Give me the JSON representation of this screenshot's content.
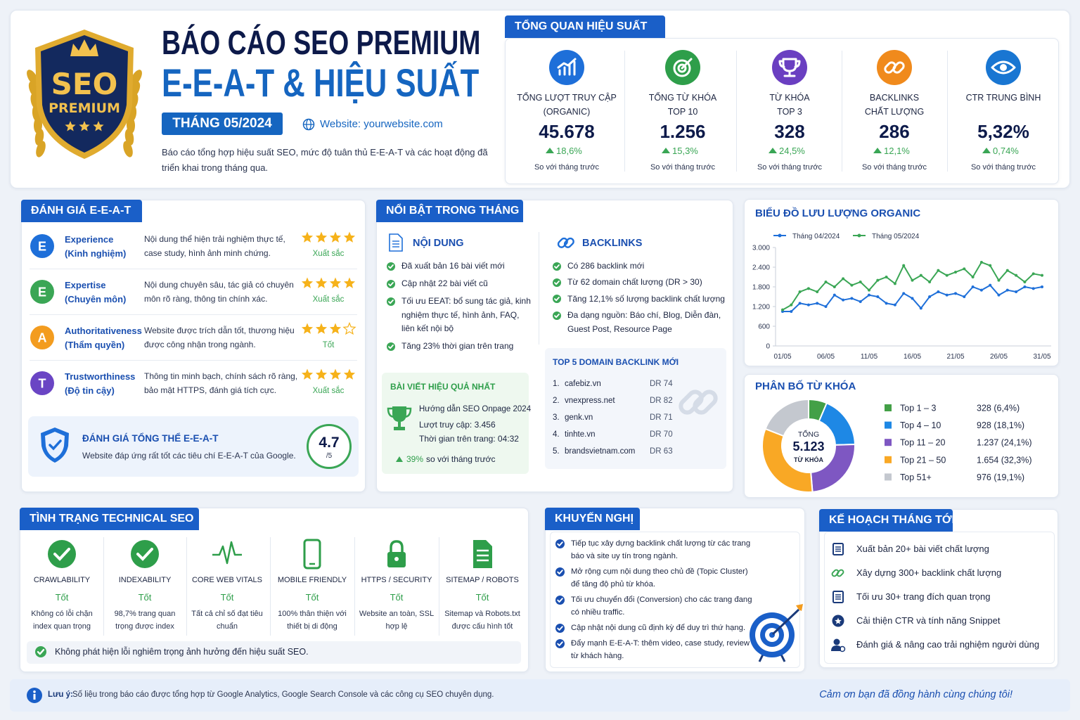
{
  "header": {
    "badge": {
      "line1": "SEO",
      "line2": "PREMIUM"
    },
    "title": "BÁO CÁO SEO PREMIUM",
    "subtitle": "E-E-A-T & HIỆU SUẤT",
    "month": "THÁNG 05/2024",
    "website": "Website: yourwebsite.com",
    "description": "Báo cáo tổng hợp hiệu suất SEO, mức độ tuân thủ E-E-A-T và các hoạt động đã triển khai trong tháng qua."
  },
  "overview": {
    "title": "TỔNG QUAN HIỆU SUẤT",
    "kpis": [
      {
        "label": [
          "TỔNG LƯỢT TRUY CẬP",
          "(ORGANIC)"
        ],
        "value": "45.678",
        "change": "18,6%",
        "note": "So với tháng trước",
        "color": "#1e6fd9"
      },
      {
        "label": [
          "TỔNG TỪ KHÓA",
          "TOP 10"
        ],
        "value": "1.256",
        "change": "15,3%",
        "note": "So với tháng trước",
        "color": "#2e9e4a"
      },
      {
        "label": [
          "TỪ KHÓA",
          "TOP 3"
        ],
        "value": "328",
        "change": "24,5%",
        "note": "So với tháng trước",
        "color": "#6a3fc1"
      },
      {
        "label": [
          "BACKLINKS",
          "CHẤT LƯỢNG"
        ],
        "value": "286",
        "change": "12,1%",
        "note": "So với tháng trước",
        "color": "#f08a1c"
      },
      {
        "label": [
          "CTR TRUNG BÌNH"
        ],
        "value": "5,32%",
        "change": "0,74%",
        "note": "So với tháng trước",
        "color": "#1976d2"
      }
    ]
  },
  "eeat": {
    "title": "ĐÁNH GIÁ E-E-A-T",
    "items": [
      {
        "letter": "E",
        "name": "Experience",
        "name_vi": "(Kinh nghiệm)",
        "description": "Nội dung thể hiện trải nghiệm thực tế, case study, hình ảnh minh chứng.",
        "stars": 4,
        "rating": "Xuất sắc",
        "color": "#1e6fd9"
      },
      {
        "letter": "E",
        "name": "Expertise",
        "name_vi": "(Chuyên môn)",
        "description": "Nội dung chuyên sâu, tác giả có chuyên môn rõ ràng, thông tin chính xác.",
        "stars": 4,
        "rating": "Xuất sắc",
        "color": "#3aa655"
      },
      {
        "letter": "A",
        "name": "Authoritativeness",
        "name_vi": "(Thẩm quyền)",
        "description": "Website được trích dẫn tốt, thương hiệu được công nhận trong ngành.",
        "stars": 3,
        "rating": "Tốt",
        "color": "#f39c1f"
      },
      {
        "letter": "T",
        "name": "Trustworthiness",
        "name_vi": "(Độ tin cậy)",
        "description": "Thông tin minh bạch, chính sách rõ ràng, bảo mật HTTPS, đánh giá tích cực.",
        "stars": 4,
        "rating": "Xuất sắc",
        "color": "#6a45c4"
      }
    ],
    "overall": {
      "title": "ĐÁNH GIÁ TỔNG THỂ E-E-A-T",
      "description": "Website đáp ứng rất tốt các tiêu chí E-E-A-T của Google.",
      "score": "4.7",
      "scale": "/5"
    }
  },
  "highlights": {
    "title": "NỔI BẬT TRONG THÁNG",
    "content": {
      "title": "NỘI DUNG",
      "items": [
        "Đã xuất bản 16 bài viết mới",
        "Cập nhật 22 bài viết cũ",
        "Tối ưu EEAT: bổ sung tác giả, kinh nghiệm thực tế, hình ảnh, FAQ, liên kết nội bộ",
        "Tăng 23% thời gian trên trang"
      ]
    },
    "backlinks": {
      "title": "BACKLINKS",
      "items": [
        "Có 286 backlink mới",
        "Từ 62 domain chất lượng (DR > 30)",
        "Tăng 12,1% số lượng backlink chất lượng",
        "Đa dạng nguồn: Báo chí, Blog, Diễn đàn, Guest Post, Resource Page"
      ]
    },
    "best_post": {
      "title": "BÀI VIẾT HIỆU QUẢ NHẤT",
      "name": "Hướng dẫn SEO Onpage 2024",
      "traffic": "Lượt truy cập: 3.456",
      "time": "Thời gian trên trang: 04:32",
      "change": "39%",
      "change_note": "so với tháng trước"
    },
    "top_domains": {
      "title": "TOP 5 DOMAIN BACKLINK MỚI",
      "rows": [
        {
          "rank": "1.",
          "domain": "cafebiz.vn",
          "dr": "DR 74"
        },
        {
          "rank": "2.",
          "domain": "vnexpress.net",
          "dr": "DR 82"
        },
        {
          "rank": "3.",
          "domain": "genk.vn",
          "dr": "DR 71"
        },
        {
          "rank": "4.",
          "domain": "tinhte.vn",
          "dr": "DR 70"
        },
        {
          "rank": "5.",
          "domain": "brandsvietnam.com",
          "dr": "DR 63"
        }
      ]
    }
  },
  "chart_data": [
    {
      "type": "line",
      "title": "BIỂU ĐỒ LƯU LƯỢNG ORGANIC",
      "categories": [
        "01/05",
        null,
        null,
        null,
        null,
        "06/05",
        null,
        null,
        null,
        null,
        "11/05",
        null,
        null,
        null,
        null,
        "16/05",
        null,
        null,
        null,
        null,
        "21/05",
        null,
        null,
        null,
        null,
        "26/05",
        null,
        null,
        null,
        null,
        "31/05"
      ],
      "series": [
        {
          "name": "Tháng 04/2024",
          "color": "#1e6fd9",
          "values": [
            1050,
            1050,
            1300,
            1250,
            1300,
            1200,
            1550,
            1400,
            1450,
            1350,
            1550,
            1500,
            1300,
            1250,
            1600,
            1450,
            1150,
            1500,
            1650,
            1550,
            1600,
            1500,
            1800,
            1700,
            1850,
            1550,
            1700,
            1650,
            1800,
            1750,
            1800
          ]
        },
        {
          "name": "Tháng 05/2024",
          "color": "#3aa655",
          "values": [
            1100,
            1250,
            1650,
            1750,
            1650,
            1950,
            1800,
            2050,
            1850,
            1950,
            1700,
            2000,
            2100,
            1900,
            2450,
            2000,
            2150,
            1950,
            2300,
            2150,
            2250,
            2350,
            2100,
            2550,
            2450,
            2000,
            2300,
            2150,
            1950,
            2200,
            2150
          ]
        }
      ],
      "ylim": [
        0,
        3000
      ],
      "yticks": [
        0,
        600,
        {
          "value": 1200,
          "label": "1.200"
        },
        {
          "value": 1800,
          "label": "1.800"
        },
        {
          "value": 2400,
          "label": "2.400"
        },
        {
          "value": 3000,
          "label": "3.000"
        }
      ],
      "grid": false,
      "legend": "top"
    },
    {
      "type": "pie",
      "title": "PHÂN BỐ TỪ KHÓA",
      "center": [
        "TỔNG",
        "5.123",
        "TỪ KHÓA"
      ],
      "categories": [
        "Top 1 – 3",
        "Top 4 – 10",
        "Top 11 – 20",
        "Top 21 – 50",
        "Top 51+"
      ],
      "values": [
        328,
        928,
        1237,
        1654,
        976
      ],
      "value_labels": [
        "328 (6,4%)",
        "928 (18,1%)",
        "1.237 (24,1%)",
        "1.654 (32,3%)",
        "976 (19,1%)"
      ],
      "colors": [
        "#43a047",
        "#1e88e5",
        "#7e57c2",
        "#f9a825",
        "#c4c8cf"
      ],
      "legend": "right"
    }
  ],
  "technical": {
    "title": "TÌNH TRẠNG TECHNICAL SEO",
    "items": [
      {
        "name": "CRAWLABILITY",
        "status": "Tốt",
        "description": "Không có lỗi chặn index quan trọng"
      },
      {
        "name": "INDEXABILITY",
        "status": "Tốt",
        "description": "98,7% trang quan trọng được index"
      },
      {
        "name": "CORE WEB VITALS",
        "status": "Tốt",
        "description": "Tất cả chỉ số đạt tiêu chuẩn"
      },
      {
        "name": "MOBILE FRIENDLY",
        "status": "Tốt",
        "description": "100% thân thiện với thiết bị di động"
      },
      {
        "name": "HTTPS / SECURITY",
        "status": "Tốt",
        "description": "Website an toàn, SSL hợp lệ"
      },
      {
        "name": "SITEMAP / ROBOTS",
        "status": "Tốt",
        "description": "Sitemap và Robots.txt được cấu hình tốt"
      }
    ],
    "footer": "Không phát hiện lỗi nghiêm trọng ảnh hưởng đến hiệu suất SEO."
  },
  "recommendations": {
    "title": "KHUYẾN NGHỊ",
    "items": [
      "Tiếp tục xây dựng backlink chất lượng từ các trang báo và site uy tín trong ngành.",
      "Mở rộng cụm nội dung theo chủ đề (Topic Cluster) để tăng độ phủ từ khóa.",
      "Tối ưu chuyển đổi (Conversion) cho các trang đang có nhiều traffic.",
      "Cập nhật nội dung cũ định kỳ để duy trì thứ hạng.",
      "Đẩy mạnh E-E-A-T: thêm video, case study, review từ khách hàng."
    ]
  },
  "plan": {
    "title": "KẾ HOẠCH THÁNG TỚI",
    "items": [
      "Xuất bản 20+ bài viết chất lượng",
      "Xây dựng 300+ backlink chất lượng",
      "Tối ưu 30+ trang đích quan trọng",
      "Cải thiện CTR và tính năng Snippet",
      "Đánh giá & nâng cao trải nghiệm người dùng"
    ]
  },
  "footer": {
    "note_label": "Lưu ý:",
    "note": "Số liệu trong báo cáo được tổng hợp từ Google Analytics, Google Search Console và các công cụ SEO chuyên dụng.",
    "thanks": "Cảm ơn bạn đã đồng hành cùng chúng tôi!"
  }
}
